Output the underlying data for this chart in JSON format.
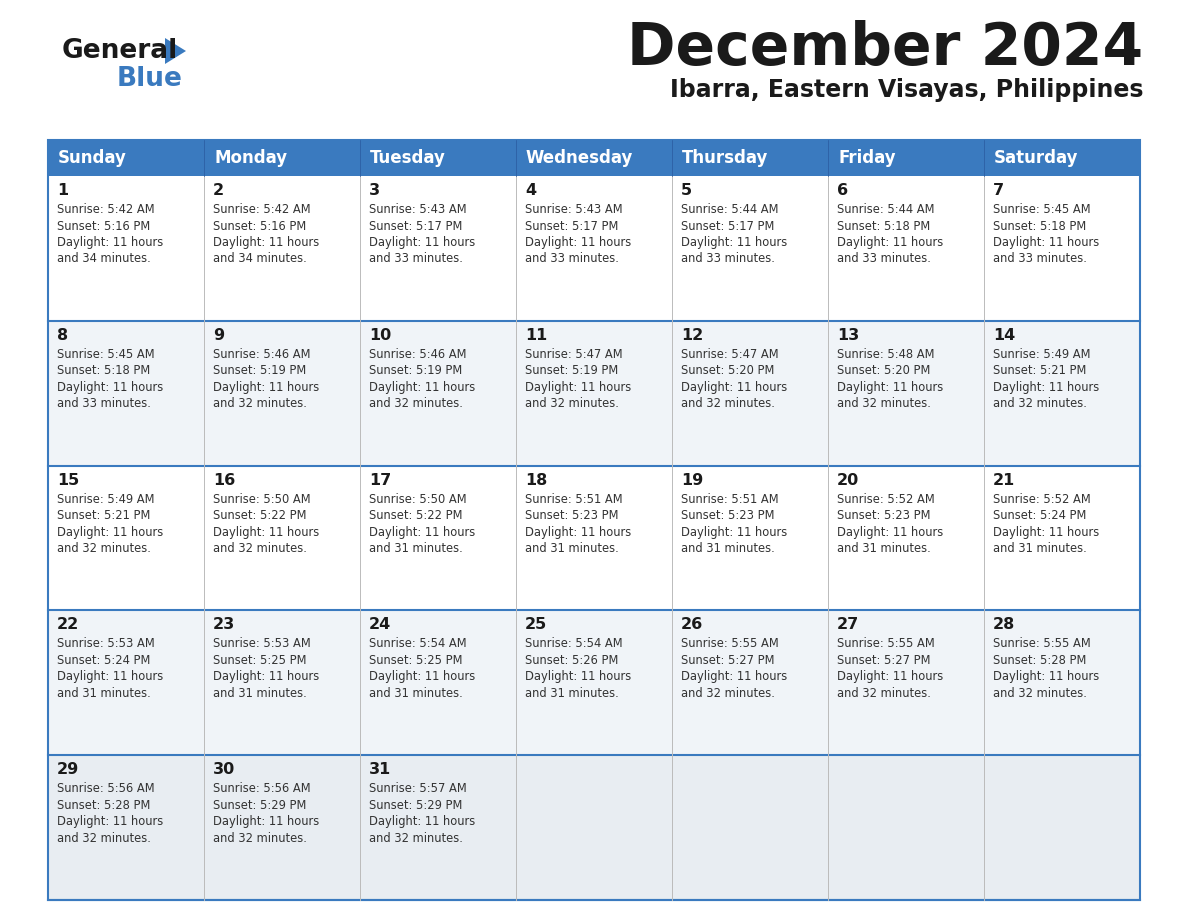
{
  "title": "December 2024",
  "subtitle": "Ibarra, Eastern Visayas, Philippines",
  "header_color": "#3a7abf",
  "header_text_color": "#ffffff",
  "cell_bg_white": "#ffffff",
  "cell_bg_alt": "#f0f4f8",
  "cell_bg_last": "#e8edf2",
  "border_color": "#3a7abf",
  "text_color": "#222222",
  "days_of_week": [
    "Sunday",
    "Monday",
    "Tuesday",
    "Wednesday",
    "Thursday",
    "Friday",
    "Saturday"
  ],
  "calendar": [
    [
      {
        "day": 1,
        "sunrise": "5:42 AM",
        "sunset": "5:16 PM",
        "daylight": "11 hours and 34 minutes."
      },
      {
        "day": 2,
        "sunrise": "5:42 AM",
        "sunset": "5:16 PM",
        "daylight": "11 hours and 34 minutes."
      },
      {
        "day": 3,
        "sunrise": "5:43 AM",
        "sunset": "5:17 PM",
        "daylight": "11 hours and 33 minutes."
      },
      {
        "day": 4,
        "sunrise": "5:43 AM",
        "sunset": "5:17 PM",
        "daylight": "11 hours and 33 minutes."
      },
      {
        "day": 5,
        "sunrise": "5:44 AM",
        "sunset": "5:17 PM",
        "daylight": "11 hours and 33 minutes."
      },
      {
        "day": 6,
        "sunrise": "5:44 AM",
        "sunset": "5:18 PM",
        "daylight": "11 hours and 33 minutes."
      },
      {
        "day": 7,
        "sunrise": "5:45 AM",
        "sunset": "5:18 PM",
        "daylight": "11 hours and 33 minutes."
      }
    ],
    [
      {
        "day": 8,
        "sunrise": "5:45 AM",
        "sunset": "5:18 PM",
        "daylight": "11 hours and 33 minutes."
      },
      {
        "day": 9,
        "sunrise": "5:46 AM",
        "sunset": "5:19 PM",
        "daylight": "11 hours and 32 minutes."
      },
      {
        "day": 10,
        "sunrise": "5:46 AM",
        "sunset": "5:19 PM",
        "daylight": "11 hours and 32 minutes."
      },
      {
        "day": 11,
        "sunrise": "5:47 AM",
        "sunset": "5:19 PM",
        "daylight": "11 hours and 32 minutes."
      },
      {
        "day": 12,
        "sunrise": "5:47 AM",
        "sunset": "5:20 PM",
        "daylight": "11 hours and 32 minutes."
      },
      {
        "day": 13,
        "sunrise": "5:48 AM",
        "sunset": "5:20 PM",
        "daylight": "11 hours and 32 minutes."
      },
      {
        "day": 14,
        "sunrise": "5:49 AM",
        "sunset": "5:21 PM",
        "daylight": "11 hours and 32 minutes."
      }
    ],
    [
      {
        "day": 15,
        "sunrise": "5:49 AM",
        "sunset": "5:21 PM",
        "daylight": "11 hours and 32 minutes."
      },
      {
        "day": 16,
        "sunrise": "5:50 AM",
        "sunset": "5:22 PM",
        "daylight": "11 hours and 32 minutes."
      },
      {
        "day": 17,
        "sunrise": "5:50 AM",
        "sunset": "5:22 PM",
        "daylight": "11 hours and 31 minutes."
      },
      {
        "day": 18,
        "sunrise": "5:51 AM",
        "sunset": "5:23 PM",
        "daylight": "11 hours and 31 minutes."
      },
      {
        "day": 19,
        "sunrise": "5:51 AM",
        "sunset": "5:23 PM",
        "daylight": "11 hours and 31 minutes."
      },
      {
        "day": 20,
        "sunrise": "5:52 AM",
        "sunset": "5:23 PM",
        "daylight": "11 hours and 31 minutes."
      },
      {
        "day": 21,
        "sunrise": "5:52 AM",
        "sunset": "5:24 PM",
        "daylight": "11 hours and 31 minutes."
      }
    ],
    [
      {
        "day": 22,
        "sunrise": "5:53 AM",
        "sunset": "5:24 PM",
        "daylight": "11 hours and 31 minutes."
      },
      {
        "day": 23,
        "sunrise": "5:53 AM",
        "sunset": "5:25 PM",
        "daylight": "11 hours and 31 minutes."
      },
      {
        "day": 24,
        "sunrise": "5:54 AM",
        "sunset": "5:25 PM",
        "daylight": "11 hours and 31 minutes."
      },
      {
        "day": 25,
        "sunrise": "5:54 AM",
        "sunset": "5:26 PM",
        "daylight": "11 hours and 31 minutes."
      },
      {
        "day": 26,
        "sunrise": "5:55 AM",
        "sunset": "5:27 PM",
        "daylight": "11 hours and 32 minutes."
      },
      {
        "day": 27,
        "sunrise": "5:55 AM",
        "sunset": "5:27 PM",
        "daylight": "11 hours and 32 minutes."
      },
      {
        "day": 28,
        "sunrise": "5:55 AM",
        "sunset": "5:28 PM",
        "daylight": "11 hours and 32 minutes."
      }
    ],
    [
      {
        "day": 29,
        "sunrise": "5:56 AM",
        "sunset": "5:28 PM",
        "daylight": "11 hours and 32 minutes."
      },
      {
        "day": 30,
        "sunrise": "5:56 AM",
        "sunset": "5:29 PM",
        "daylight": "11 hours and 32 minutes."
      },
      {
        "day": 31,
        "sunrise": "5:57 AM",
        "sunset": "5:29 PM",
        "daylight": "11 hours and 32 minutes."
      },
      null,
      null,
      null,
      null
    ]
  ]
}
